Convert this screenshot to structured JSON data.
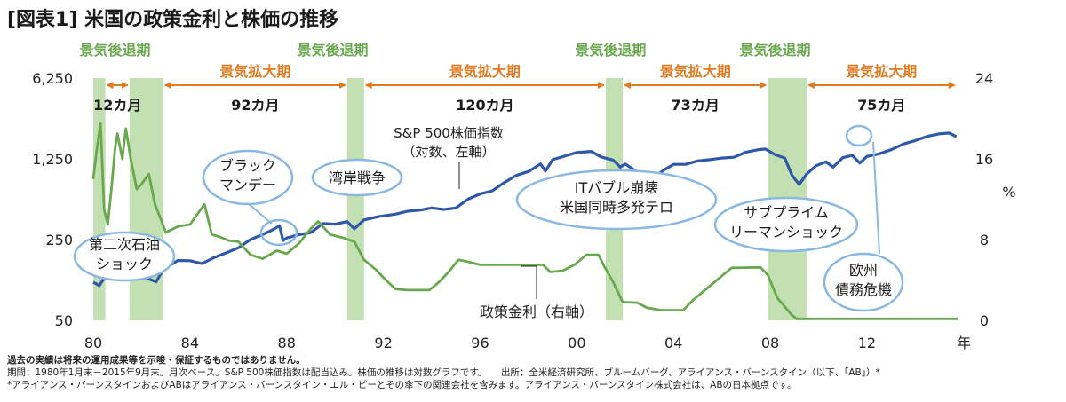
{
  "title": "[図表1] 米国の政策金利と株価の推移",
  "chart_data": {
    "type": "line",
    "x_tick_labels": [
      "80",
      "84",
      "88",
      "92",
      "96",
      "00",
      "04",
      "08",
      "12"
    ],
    "x_tick_years": [
      1980,
      1984,
      1988,
      1992,
      1996,
      2000,
      2004,
      2008,
      2012
    ],
    "x_unit": "年",
    "x_range": [
      1980.0,
      2015.75
    ],
    "left_axis": {
      "scale": "log",
      "ticks": [
        50,
        250,
        1250,
        6250
      ],
      "tick_labels": [
        "50",
        "250",
        "1,250",
        "6,250"
      ],
      "range": [
        50,
        6250
      ]
    },
    "right_axis": {
      "scale": "linear",
      "ticks": [
        0,
        8,
        16,
        24
      ],
      "tick_labels": [
        "0",
        "8",
        "16",
        "24"
      ],
      "range": [
        0,
        24
      ],
      "label": "%"
    },
    "recessions": [
      {
        "start": 1980.0,
        "end": 1980.5
      },
      {
        "start": 1981.5,
        "end": 1982.9
      },
      {
        "start": 1990.5,
        "end": 1991.2
      },
      {
        "start": 2001.2,
        "end": 2001.9
      },
      {
        "start": 2007.9,
        "end": 2009.5
      }
    ],
    "recession_label": "景気後退期",
    "recession_label_years": [
      1980.9,
      1989.9,
      2001.4,
      2008.2
    ],
    "expansions": [
      {
        "start": 1980.5,
        "end": 1981.5,
        "label": "12カ月"
      },
      {
        "start": 1982.9,
        "end": 1990.5,
        "label": "92カ月"
      },
      {
        "start": 1991.2,
        "end": 2001.2,
        "label": "120カ月"
      },
      {
        "start": 2001.9,
        "end": 2007.9,
        "label": "73カ月"
      },
      {
        "start": 2009.5,
        "end": 2015.7,
        "label": "75カ月"
      }
    ],
    "expansion_label": "景気拡大期",
    "series": [
      {
        "name": "S&P 500株価指数",
        "axis": "left",
        "color": "#2f58a8",
        "points": [
          [
            1980.0,
            107
          ],
          [
            1980.25,
            100
          ],
          [
            1980.5,
            120
          ],
          [
            1980.9,
            135
          ],
          [
            1981.5,
            131
          ],
          [
            1981.9,
            121
          ],
          [
            1982.3,
            114
          ],
          [
            1982.6,
            108
          ],
          [
            1982.9,
            138
          ],
          [
            1983.5,
            165
          ],
          [
            1984.0,
            164
          ],
          [
            1984.5,
            155
          ],
          [
            1985.0,
            175
          ],
          [
            1985.5,
            192
          ],
          [
            1986.0,
            212
          ],
          [
            1986.5,
            250
          ],
          [
            1987.0,
            276
          ],
          [
            1987.5,
            310
          ],
          [
            1987.7,
            330
          ],
          [
            1987.85,
            245
          ],
          [
            1988.0,
            258
          ],
          [
            1988.5,
            275
          ],
          [
            1989.0,
            288
          ],
          [
            1989.5,
            345
          ],
          [
            1990.0,
            340
          ],
          [
            1990.5,
            358
          ],
          [
            1990.8,
            310
          ],
          [
            1991.2,
            370
          ],
          [
            1991.8,
            395
          ],
          [
            1992.5,
            415
          ],
          [
            1993.0,
            440
          ],
          [
            1993.5,
            450
          ],
          [
            1994.0,
            470
          ],
          [
            1994.5,
            455
          ],
          [
            1995.0,
            470
          ],
          [
            1995.5,
            560
          ],
          [
            1996.0,
            620
          ],
          [
            1996.5,
            660
          ],
          [
            1997.0,
            780
          ],
          [
            1997.5,
            900
          ],
          [
            1998.0,
            970
          ],
          [
            1998.5,
            1130
          ],
          [
            1998.7,
            980
          ],
          [
            1999.0,
            1230
          ],
          [
            1999.5,
            1320
          ],
          [
            2000.0,
            1420
          ],
          [
            2000.6,
            1450
          ],
          [
            2001.0,
            1300
          ],
          [
            2001.5,
            1220
          ],
          [
            2001.8,
            1060
          ],
          [
            2002.0,
            1130
          ],
          [
            2002.5,
            960
          ],
          [
            2002.8,
            820
          ],
          [
            2003.2,
            860
          ],
          [
            2003.6,
            1000
          ],
          [
            2004.0,
            1120
          ],
          [
            2004.5,
            1120
          ],
          [
            2005.0,
            1200
          ],
          [
            2005.5,
            1230
          ],
          [
            2006.0,
            1270
          ],
          [
            2006.5,
            1290
          ],
          [
            2007.0,
            1430
          ],
          [
            2007.5,
            1500
          ],
          [
            2007.8,
            1520
          ],
          [
            2008.2,
            1360
          ],
          [
            2008.6,
            1270
          ],
          [
            2008.9,
            900
          ],
          [
            2009.2,
            750
          ],
          [
            2009.5,
            920
          ],
          [
            2009.9,
            1090
          ],
          [
            2010.3,
            1180
          ],
          [
            2010.6,
            1060
          ],
          [
            2011.0,
            1280
          ],
          [
            2011.4,
            1340
          ],
          [
            2011.7,
            1150
          ],
          [
            2012.0,
            1310
          ],
          [
            2012.5,
            1380
          ],
          [
            2013.0,
            1500
          ],
          [
            2013.5,
            1680
          ],
          [
            2014.0,
            1800
          ],
          [
            2014.5,
            1960
          ],
          [
            2015.0,
            2060
          ],
          [
            2015.4,
            2090
          ],
          [
            2015.7,
            1950
          ]
        ]
      },
      {
        "name": "政策金利",
        "axis": "right",
        "color": "#6aa84f",
        "points": [
          [
            1980.0,
            14
          ],
          [
            1980.15,
            17
          ],
          [
            1980.3,
            19.5
          ],
          [
            1980.45,
            11
          ],
          [
            1980.6,
            9.5
          ],
          [
            1980.75,
            13
          ],
          [
            1980.9,
            17
          ],
          [
            1981.0,
            18.5
          ],
          [
            1981.2,
            16
          ],
          [
            1981.35,
            19
          ],
          [
            1981.55,
            16
          ],
          [
            1981.8,
            13
          ],
          [
            1982.0,
            13.5
          ],
          [
            1982.3,
            14.5
          ],
          [
            1982.55,
            11.5
          ],
          [
            1982.8,
            10
          ],
          [
            1983.0,
            8.7
          ],
          [
            1983.5,
            9.3
          ],
          [
            1984.0,
            9.5
          ],
          [
            1984.3,
            10.5
          ],
          [
            1984.6,
            11.5
          ],
          [
            1984.9,
            8.5
          ],
          [
            1985.2,
            8.3
          ],
          [
            1985.6,
            7.9
          ],
          [
            1986.0,
            7.8
          ],
          [
            1986.5,
            6.5
          ],
          [
            1987.0,
            6.1
          ],
          [
            1987.6,
            6.9
          ],
          [
            1988.0,
            6.6
          ],
          [
            1988.5,
            7.6
          ],
          [
            1989.0,
            9.1
          ],
          [
            1989.3,
            9.8
          ],
          [
            1989.8,
            8.5
          ],
          [
            1990.3,
            8.2
          ],
          [
            1990.8,
            7.8
          ],
          [
            1991.2,
            6.0
          ],
          [
            1991.7,
            5.0
          ],
          [
            1992.1,
            4.0
          ],
          [
            1992.5,
            3.1
          ],
          [
            1993.0,
            3.0
          ],
          [
            1993.9,
            3.0
          ],
          [
            1994.3,
            3.8
          ],
          [
            1994.7,
            4.8
          ],
          [
            1995.1,
            6.0
          ],
          [
            1995.5,
            5.8
          ],
          [
            1996.0,
            5.5
          ],
          [
            1997.2,
            5.5
          ],
          [
            1997.5,
            5.5
          ],
          [
            1998.6,
            5.5
          ],
          [
            1998.9,
            4.8
          ],
          [
            1999.4,
            4.9
          ],
          [
            1999.9,
            5.5
          ],
          [
            2000.4,
            6.5
          ],
          [
            2000.9,
            6.5
          ],
          [
            2001.1,
            5.5
          ],
          [
            2001.5,
            3.8
          ],
          [
            2001.9,
            1.8
          ],
          [
            2002.5,
            1.75
          ],
          [
            2002.9,
            1.25
          ],
          [
            2003.5,
            1.0
          ],
          [
            2004.4,
            1.0
          ],
          [
            2004.8,
            2.0
          ],
          [
            2005.4,
            3.2
          ],
          [
            2005.9,
            4.2
          ],
          [
            2006.4,
            5.2
          ],
          [
            2007.6,
            5.25
          ],
          [
            2007.9,
            4.5
          ],
          [
            2008.3,
            2.2
          ],
          [
            2008.9,
            0.5
          ],
          [
            2009.1,
            0.15
          ],
          [
            2015.75,
            0.15
          ]
        ]
      }
    ],
    "series_labels": [
      {
        "series": "S&P 500株価指数",
        "lines": [
          "S&P 500株価指数",
          "（対数、左軸）"
        ]
      },
      {
        "series": "政策金利",
        "lines": [
          "政策金利（右軸）"
        ]
      }
    ],
    "annotations": [
      {
        "lines": [
          "第二次石油",
          "ショック"
        ],
        "year": 1981.0
      },
      {
        "lines": [
          "ブラック",
          "マンデー"
        ],
        "year": 1987.8
      },
      {
        "lines": [
          "湾岸戦争"
        ],
        "year": 1990.8
      },
      {
        "lines": [
          "ITバブル崩壊",
          "米国同時多発テロ"
        ],
        "year": 2001.5
      },
      {
        "lines": [
          "サブプライム",
          "リーマンショック"
        ],
        "year": 2008.5
      },
      {
        "lines": [
          "欧州",
          "債務危機"
        ],
        "year": 2011.7
      }
    ]
  },
  "notes": [
    "過去の実績は将来の運用成果等を示唆・保証するものではありません。",
    "期間：1980年1月末－2015年9月末。月次ベース。S&P 500株価指数は配当込み。株価の推移は対数グラフです。　　出所：全米経済研究所、ブルームバーグ、アライアンス・バーンスタイン（以下、「AB」）*",
    "*アライアンス・バーンスタインおよびABはアライアンス・バーンスタイン・エル・ピーとその傘下の関連会社を含みます。アライアンス・バーンスタイン株式会社は、ABの日本拠点です。"
  ]
}
